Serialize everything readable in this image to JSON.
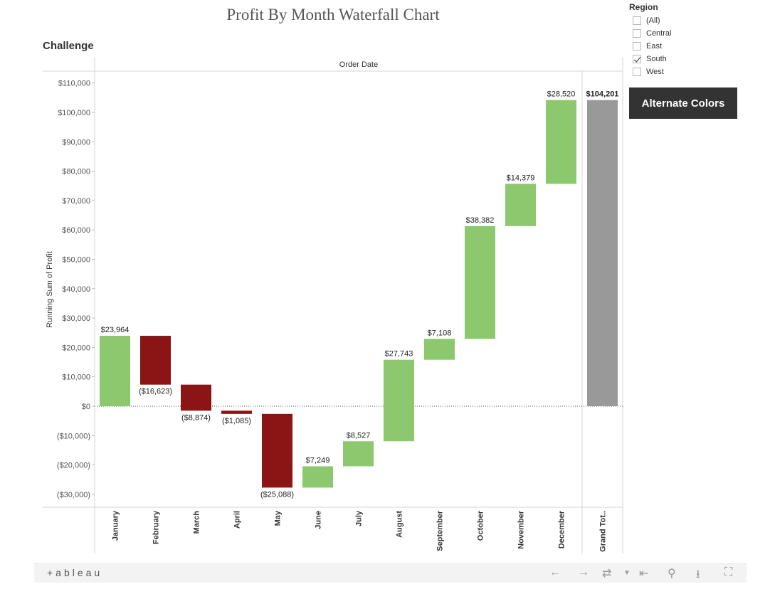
{
  "title": "Profit By Month Waterfall Chart",
  "sheet_name": "Challenge",
  "filter": {
    "title": "Region",
    "items": [
      {
        "label": "(All)",
        "checked": false
      },
      {
        "label": "Central",
        "checked": false
      },
      {
        "label": "East",
        "checked": false
      },
      {
        "label": "South",
        "checked": true
      },
      {
        "label": "West",
        "checked": false
      }
    ]
  },
  "alternate_button": "Alternate Colors",
  "footer": {
    "brand": "+ableau"
  },
  "chart_data": {
    "type": "waterfall",
    "column_header": "Order Date",
    "ylabel": "Running Sum of Profit",
    "ylim": [
      -35000,
      115000
    ],
    "yticks": [
      {
        "value": 110000,
        "label": "$110,000"
      },
      {
        "value": 100000,
        "label": "$100,000"
      },
      {
        "value": 90000,
        "label": "$90,000"
      },
      {
        "value": 80000,
        "label": "$80,000"
      },
      {
        "value": 70000,
        "label": "$70,000"
      },
      {
        "value": 60000,
        "label": "$60,000"
      },
      {
        "value": 50000,
        "label": "$50,000"
      },
      {
        "value": 40000,
        "label": "$40,000"
      },
      {
        "value": 30000,
        "label": "$30,000"
      },
      {
        "value": 20000,
        "label": "$20,000"
      },
      {
        "value": 10000,
        "label": "$10,000"
      },
      {
        "value": 0,
        "label": "$0"
      },
      {
        "value": -10000,
        "label": "($10,000)"
      },
      {
        "value": -20000,
        "label": "($20,000)"
      },
      {
        "value": -30000,
        "label": "($30,000)"
      }
    ],
    "categories": [
      "January",
      "February",
      "March",
      "April",
      "May",
      "June",
      "July",
      "August",
      "September",
      "October",
      "November",
      "December"
    ],
    "values": [
      23964,
      -16623,
      -8874,
      -1085,
      -25088,
      7249,
      8527,
      27743,
      7108,
      38382,
      14379,
      28520
    ],
    "labels": [
      "$23,964",
      "($16,623)",
      "($8,874)",
      "($1,085)",
      "($25,088)",
      "$7,249",
      "$8,527",
      "$27,743",
      "$7,108",
      "$38,382",
      "$14,379",
      "$28,520"
    ],
    "total": {
      "category": "Grand Tot..",
      "value": 104201,
      "label": "$104,201"
    },
    "colors": {
      "positive": "#8bc86e",
      "negative": "#8b1515",
      "total": "#999999"
    }
  }
}
